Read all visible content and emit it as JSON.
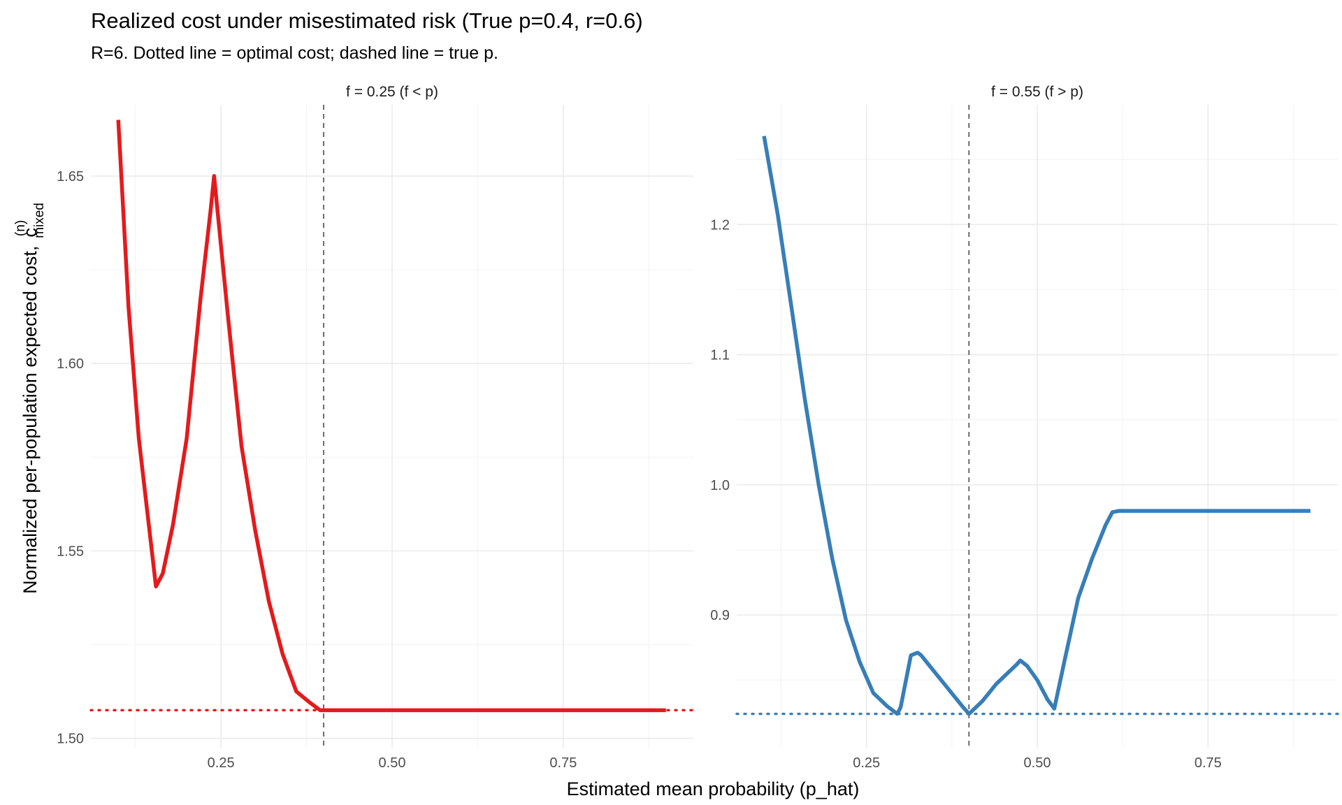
{
  "chart_data": {
    "type": "line",
    "title": "Realized cost under misestimated risk (True p=0.4, r=0.6)",
    "subtitle": "R=6. Dotted line = optimal cost; dashed line = true p.",
    "xlabel": "Estimated mean probability (p_hat)",
    "ylabel": {
      "text": "Normalized per-population expected cost,",
      "symbol": "c",
      "superscript": "(n)",
      "subscript": "mixed"
    },
    "grid": true,
    "legend": "none",
    "true_p": 0.4,
    "panels": [
      {
        "strip_label": "f = 0.25 (f < p)",
        "color": "#E41A1C",
        "xlim": [
          0.06,
          0.94
        ],
        "ylim": [
          1.4975,
          1.669
        ],
        "x_ticks": [
          0.25,
          0.5,
          0.75
        ],
        "x_tick_labels": [
          "0.25",
          "0.50",
          "0.75"
        ],
        "y_ticks": [
          1.5,
          1.55,
          1.6,
          1.65
        ],
        "y_tick_labels": [
          "1.50",
          "1.55",
          "1.60",
          "1.65"
        ],
        "optimal_cost": 1.5075,
        "series": {
          "x": [
            0.1,
            0.115,
            0.13,
            0.155,
            0.165,
            0.18,
            0.2,
            0.22,
            0.235,
            0.24,
            0.26,
            0.28,
            0.3,
            0.32,
            0.34,
            0.36,
            0.38,
            0.395,
            0.4,
            0.9
          ],
          "y": [
            1.665,
            1.615,
            1.58,
            1.5405,
            1.544,
            1.557,
            1.58,
            1.617,
            1.641,
            1.65,
            1.613,
            1.578,
            1.5555,
            1.5365,
            1.5225,
            1.5125,
            1.5095,
            1.5075,
            1.5075,
            1.5075
          ]
        }
      },
      {
        "strip_label": "f = 0.55 (f > p)",
        "color": "#377EB8",
        "xlim": [
          0.06,
          0.94
        ],
        "ylim": [
          0.798,
          1.292
        ],
        "x_ticks": [
          0.25,
          0.5,
          0.75
        ],
        "x_tick_labels": [
          "0.25",
          "0.50",
          "0.75"
        ],
        "y_ticks": [
          0.9,
          1.0,
          1.1,
          1.2
        ],
        "y_tick_labels": [
          "0.9",
          "1.0",
          "1.1",
          "1.2"
        ],
        "optimal_cost": 0.824,
        "series": {
          "x": [
            0.1,
            0.12,
            0.14,
            0.16,
            0.18,
            0.2,
            0.22,
            0.24,
            0.26,
            0.28,
            0.295,
            0.3,
            0.315,
            0.325,
            0.33,
            0.35,
            0.37,
            0.39,
            0.4,
            0.42,
            0.44,
            0.46,
            0.47,
            0.475,
            0.485,
            0.5,
            0.515,
            0.525,
            0.54,
            0.56,
            0.58,
            0.6,
            0.61,
            0.62,
            0.9
          ],
          "y": [
            1.268,
            1.208,
            1.137,
            1.065,
            1.0,
            0.943,
            0.896,
            0.864,
            0.84,
            0.83,
            0.824,
            0.829,
            0.869,
            0.871,
            0.869,
            0.856,
            0.843,
            0.83,
            0.824,
            0.834,
            0.847,
            0.857,
            0.862,
            0.865,
            0.861,
            0.85,
            0.835,
            0.828,
            0.865,
            0.913,
            0.943,
            0.969,
            0.979,
            0.98,
            0.98
          ]
        }
      }
    ]
  }
}
